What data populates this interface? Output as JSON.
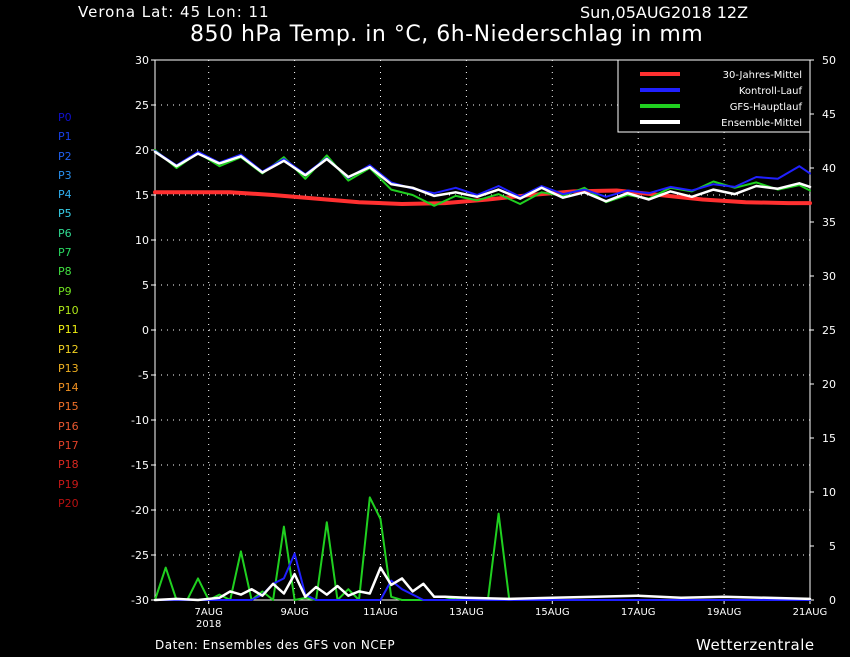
{
  "header": {
    "station": "Verona   Lat: 45 Lon: 11",
    "run": "Sun,05AUG2018 12Z",
    "title": "850 hPa Temp. in °C, 6h-Niederschlag in mm"
  },
  "footer": {
    "source": "Daten: Ensembles des GFS von NCEP",
    "brand": "Wetterzentrale"
  },
  "members": [
    {
      "label": "P0",
      "color": "#1010d0"
    },
    {
      "label": "P1",
      "color": "#1840e8"
    },
    {
      "label": "P2",
      "color": "#2060f0"
    },
    {
      "label": "P3",
      "color": "#2890f0"
    },
    {
      "label": "P4",
      "color": "#30b0f0"
    },
    {
      "label": "P5",
      "color": "#38d0e8"
    },
    {
      "label": "P6",
      "color": "#30d890"
    },
    {
      "label": "P7",
      "color": "#28d860"
    },
    {
      "label": "P8",
      "color": "#40e040"
    },
    {
      "label": "P9",
      "color": "#70e020"
    },
    {
      "label": "P10",
      "color": "#b0e818"
    },
    {
      "label": "P11",
      "color": "#f0f010"
    },
    {
      "label": "P12",
      "color": "#f0d020"
    },
    {
      "label": "P13",
      "color": "#f0b020"
    },
    {
      "label": "P14",
      "color": "#f09020"
    },
    {
      "label": "P15",
      "color": "#f07028"
    },
    {
      "label": "P16",
      "color": "#e85830"
    },
    {
      "label": "P17",
      "color": "#e04028"
    },
    {
      "label": "P18",
      "color": "#d82820"
    },
    {
      "label": "P19",
      "color": "#c81818"
    },
    {
      "label": "P20",
      "color": "#b81010"
    }
  ],
  "chart_data": {
    "type": "line",
    "title": "850 hPa Temp. in °C, 6h-Niederschlag in mm",
    "xlabel": "",
    "ylabel": "",
    "x_ticks": [
      {
        "day": 7,
        "label": "7AUG",
        "sublabel": "2018"
      },
      {
        "day": 9,
        "label": "9AUG"
      },
      {
        "day": 11,
        "label": "11AUG"
      },
      {
        "day": 13,
        "label": "13AUG"
      },
      {
        "day": 15,
        "label": "15AUG"
      },
      {
        "day": 17,
        "label": "17AUG"
      },
      {
        "day": 19,
        "label": "19AUG"
      },
      {
        "day": 21,
        "label": "21AUG"
      }
    ],
    "x_range_days": [
      5.75,
      21.0
    ],
    "left_axis": {
      "min": -30,
      "max": 30,
      "ticks": [
        30,
        25,
        20,
        15,
        10,
        5,
        0,
        -5,
        -10,
        -15,
        -20,
        -25,
        -30
      ]
    },
    "right_axis": {
      "min": 0,
      "max": 50,
      "ticks": [
        50,
        45,
        40,
        35,
        30,
        25,
        20,
        15,
        10,
        5,
        0
      ]
    },
    "grid": true,
    "legend_position": "top-right",
    "legend": [
      {
        "name": "30-Jahres-Mittel",
        "color": "#ff3030"
      },
      {
        "name": "Kontroll-Lauf",
        "color": "#2020ff"
      },
      {
        "name": "GFS-Hauptlauf",
        "color": "#20d020"
      },
      {
        "name": "Ensemble-Mittel",
        "color": "#ffffff"
      }
    ],
    "series": [
      {
        "name": "30-Jahres-Mittel",
        "axis": "left",
        "x": [
          5.75,
          7.5,
          8.5,
          9.5,
          10.5,
          11.5,
          12.5,
          13.5,
          14.5,
          15.5,
          16.5,
          17.5,
          18.5,
          19.5,
          20.5,
          21.0
        ],
        "y": [
          15.3,
          15.3,
          15.0,
          14.6,
          14.2,
          14.0,
          14.1,
          14.5,
          15.0,
          15.4,
          15.5,
          15.0,
          14.5,
          14.2,
          14.1,
          14.1
        ]
      },
      {
        "name": "Ensemble-Mittel",
        "axis": "left",
        "x": [
          5.75,
          6.25,
          6.75,
          7.25,
          7.75,
          8.25,
          8.75,
          9.25,
          9.75,
          10.25,
          10.75,
          11.25,
          11.75,
          12.25,
          12.75,
          13.25,
          13.75,
          14.25,
          14.75,
          15.25,
          15.75,
          16.25,
          16.75,
          17.25,
          17.75,
          18.25,
          18.75,
          19.25,
          19.75,
          20.25,
          20.75,
          21.0
        ],
        "y": [
          19.8,
          18.2,
          19.6,
          18.5,
          19.3,
          17.5,
          18.8,
          17.2,
          19.0,
          17.0,
          18.1,
          16.2,
          15.8,
          14.9,
          15.3,
          14.8,
          15.6,
          14.6,
          15.8,
          14.7,
          15.3,
          14.3,
          15.2,
          14.5,
          15.4,
          14.8,
          15.6,
          15.1,
          16.0,
          15.7,
          16.3,
          15.9
        ]
      },
      {
        "name": "Kontroll-Lauf",
        "axis": "left",
        "x": [
          5.75,
          6.25,
          6.75,
          7.25,
          7.75,
          8.25,
          8.75,
          9.25,
          9.75,
          10.25,
          10.75,
          11.25,
          11.75,
          12.25,
          12.75,
          13.25,
          13.75,
          14.25,
          14.75,
          15.25,
          15.75,
          16.25,
          16.75,
          17.25,
          17.75,
          18.25,
          18.75,
          19.25,
          19.75,
          20.25,
          20.75,
          21.0
        ],
        "y": [
          19.9,
          18.3,
          19.8,
          18.6,
          19.5,
          17.6,
          19.0,
          17.3,
          19.1,
          16.9,
          18.3,
          16.4,
          15.7,
          15.2,
          15.8,
          15.0,
          16.0,
          14.8,
          16.0,
          15.1,
          15.6,
          14.8,
          15.5,
          15.2,
          15.9,
          15.5,
          16.2,
          15.9,
          17.0,
          16.8,
          18.2,
          17.4
        ]
      },
      {
        "name": "GFS-Hauptlauf",
        "axis": "left",
        "x": [
          5.75,
          6.25,
          6.75,
          7.25,
          7.75,
          8.25,
          8.75,
          9.25,
          9.75,
          10.25,
          10.75,
          11.25,
          11.75,
          12.25,
          12.75,
          13.25,
          13.75,
          14.25,
          14.75,
          15.25,
          15.75,
          16.25,
          16.75,
          17.25,
          17.75,
          18.25,
          18.75,
          19.25,
          19.75,
          20.25,
          20.75,
          21.0
        ],
        "y": [
          20.0,
          18.0,
          19.7,
          18.2,
          19.2,
          17.4,
          19.2,
          16.8,
          19.4,
          16.6,
          18.0,
          15.6,
          15.0,
          13.8,
          14.9,
          14.4,
          15.1,
          14.0,
          15.3,
          14.9,
          15.8,
          14.2,
          15.0,
          14.6,
          15.8,
          15.4,
          16.5,
          15.8,
          16.4,
          15.6,
          16.1,
          15.5
        ]
      },
      {
        "name": "GFS-Hauptlauf",
        "axis": "right",
        "x": [
          5.75,
          6.0,
          6.25,
          6.5,
          6.75,
          7.0,
          7.25,
          7.5,
          7.75,
          8.0,
          8.25,
          8.5,
          8.75,
          9.0,
          9.25,
          9.5,
          9.75,
          10.0,
          10.25,
          10.5,
          10.75,
          11.0,
          11.25,
          11.5,
          11.75,
          12.0,
          12.25,
          12.5,
          12.75,
          13.0,
          13.25,
          13.5,
          13.75,
          14.0,
          14.25,
          14.5,
          14.75,
          15.0,
          15.25,
          15.5,
          15.75,
          16.0,
          21.0
        ],
        "y": [
          0,
          3.0,
          0,
          0,
          2.0,
          0,
          0.5,
          0,
          4.5,
          0,
          0.8,
          0,
          6.8,
          0,
          0.2,
          0,
          7.2,
          0,
          1.0,
          0,
          9.5,
          7.5,
          0.3,
          0,
          0,
          0,
          0,
          0,
          0.2,
          0,
          0,
          0,
          8.0,
          0,
          0,
          0,
          0,
          0,
          0,
          0,
          0,
          0,
          0
        ]
      },
      {
        "name": "Ensemble-Mittel",
        "axis": "right",
        "x": [
          5.75,
          6.25,
          6.75,
          7.25,
          7.5,
          7.75,
          8.0,
          8.25,
          8.5,
          8.75,
          9.0,
          9.25,
          9.5,
          9.75,
          10.0,
          10.25,
          10.5,
          10.75,
          11.0,
          11.25,
          11.5,
          11.75,
          12.0,
          12.25,
          12.5,
          13.0,
          14.0,
          15.0,
          16.0,
          17.0,
          18.0,
          19.0,
          20.0,
          21.0
        ],
        "y": [
          0,
          0.1,
          0,
          0.2,
          0.8,
          0.5,
          1.0,
          0.4,
          1.5,
          0.6,
          2.4,
          0.3,
          1.2,
          0.5,
          1.3,
          0.4,
          0.8,
          0.6,
          3.0,
          1.4,
          2.0,
          0.8,
          1.5,
          0.3,
          0.3,
          0.2,
          0.1,
          0.2,
          0.3,
          0.4,
          0.2,
          0.3,
          0.2,
          0.1
        ]
      },
      {
        "name": "Kontroll-Lauf",
        "axis": "right",
        "x": [
          5.75,
          8.0,
          8.25,
          8.5,
          8.75,
          9.0,
          9.25,
          9.5,
          11.0,
          11.25,
          11.5,
          12.0,
          21.0
        ],
        "y": [
          0,
          0,
          0.5,
          1.5,
          2.0,
          4.3,
          0.5,
          0,
          0,
          1.8,
          1.0,
          0,
          0
        ]
      }
    ]
  }
}
